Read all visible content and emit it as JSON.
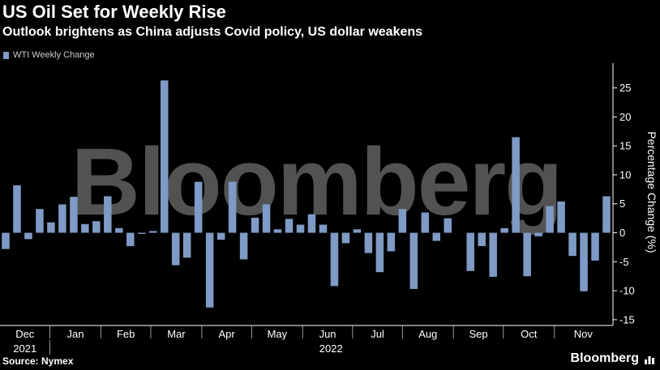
{
  "header": {
    "title": "US Oil Set for Weekly Rise",
    "subtitle": "Outlook brightens as China adjusts Covid policy, US dollar weakens"
  },
  "footer": {
    "source": "Source: Nymex",
    "brand": "Bloomberg"
  },
  "watermark": "Bloomberg",
  "colors": {
    "bar": "#7f9ac4",
    "background": "#000000",
    "text": "#ffffff"
  },
  "chart_data": {
    "type": "bar",
    "title": "US Oil Set for Weekly Rise",
    "ylabel": "Percentage Change (%)",
    "ylim": [
      -16,
      29
    ],
    "yticks": [
      25,
      20,
      15,
      10,
      5,
      0,
      -5,
      -10,
      -15
    ],
    "y_axis_position": "right",
    "grid": false,
    "legend_position": "top-left",
    "month_labels": [
      "Dec",
      "Jan",
      "Feb",
      "Mar",
      "Apr",
      "May",
      "Jun",
      "Jul",
      "Aug",
      "Sep",
      "Oct",
      "Nov"
    ],
    "year_labels": [
      "2021",
      "2022"
    ],
    "series": [
      {
        "name": "WTI Weekly Change",
        "values": [
          -2.8,
          8.2,
          -1.1,
          4.1,
          1.8,
          4.9,
          6.2,
          1.5,
          2.0,
          6.3,
          0.8,
          -2.3,
          -0.2,
          0.3,
          26.3,
          -5.6,
          -4.3,
          8.8,
          -12.9,
          -1.2,
          8.8,
          -4.6,
          2.6,
          4.9,
          0.6,
          2.4,
          1.4,
          3.2,
          1.4,
          -9.2,
          -1.8,
          0.6,
          -3.5,
          -6.8,
          -3.2,
          4.1,
          -9.7,
          3.5,
          -1.4,
          2.5,
          0,
          -6.6,
          -2.3,
          -7.6,
          0.8,
          16.5,
          -7.5,
          -0.6,
          4.6,
          5.4,
          -4.0,
          -10.1,
          -4.8,
          6.3
        ]
      }
    ]
  }
}
